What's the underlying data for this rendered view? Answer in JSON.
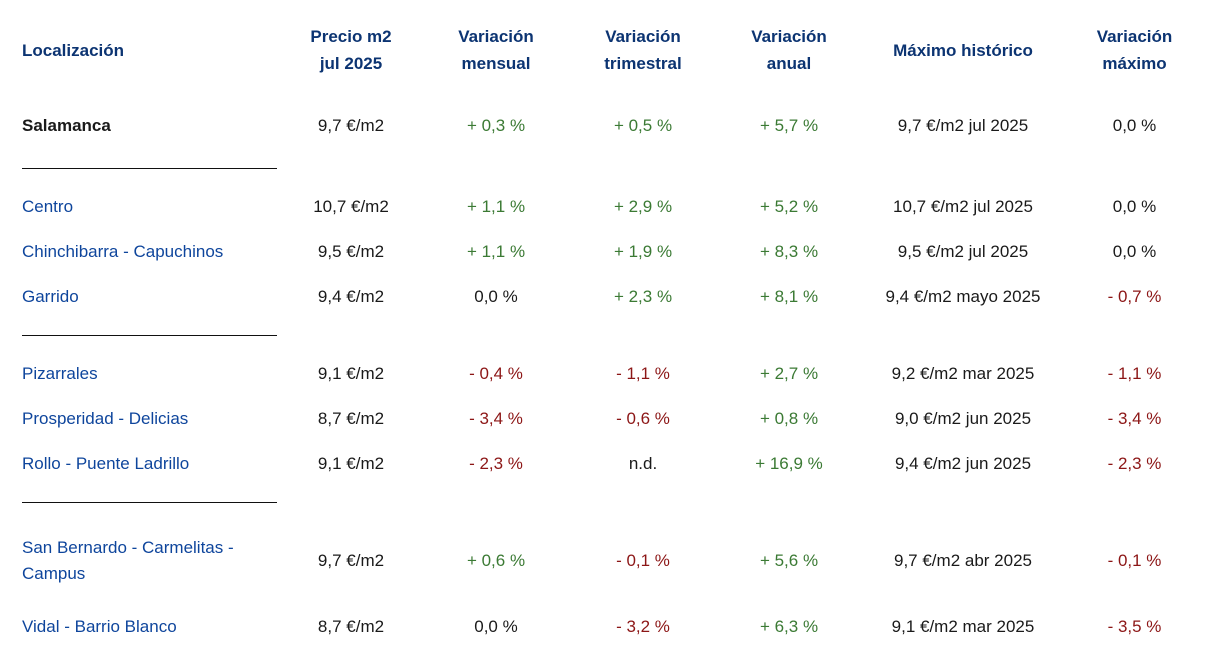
{
  "colors": {
    "header_blue": "#0c3472",
    "location_link_blue": "#0e459c",
    "positive_green": "#3b7a34",
    "negative_red": "#8c1616",
    "neutral_black": "#1a1a1a",
    "divider_line": "#111111",
    "background": "#ffffff"
  },
  "table": {
    "headers": [
      {
        "line1": "Localización",
        "line2": ""
      },
      {
        "line1": "Precio m2",
        "line2": "jul 2025"
      },
      {
        "line1": "Variación",
        "line2": "mensual"
      },
      {
        "line1": "Variación",
        "line2": "trimestral"
      },
      {
        "line1": "Variación",
        "line2": "anual"
      },
      {
        "line1": "Máximo histórico",
        "line2": ""
      },
      {
        "line1": "Variación",
        "line2": "máximo"
      }
    ],
    "rows": [
      {
        "location": "Salamanca",
        "price": "9,7 €/m2",
        "monthly": "+ 0,3 %",
        "quarterly": "+ 0,5 %",
        "annual": "+ 5,7 %",
        "historic_max": "9,7 €/m2 jul 2025",
        "max_variation": "0,0 %"
      },
      {
        "location": "Centro",
        "price": "10,7 €/m2",
        "monthly": "+ 1,1 %",
        "quarterly": "+ 2,9 %",
        "annual": "+ 5,2 %",
        "historic_max": "10,7 €/m2 jul 2025",
        "max_variation": "0,0 %"
      },
      {
        "location": "Chinchibarra - Capuchinos",
        "price": "9,5 €/m2",
        "monthly": "+ 1,1 %",
        "quarterly": "+ 1,9 %",
        "annual": "+ 8,3 %",
        "historic_max": "9,5 €/m2 jul 2025",
        "max_variation": "0,0 %"
      },
      {
        "location": "Garrido",
        "price": "9,4 €/m2",
        "monthly": "0,0 %",
        "quarterly": "+ 2,3 %",
        "annual": "+ 8,1 %",
        "historic_max": "9,4 €/m2 mayo 2025",
        "max_variation": "- 0,7 %"
      },
      {
        "location": "Pizarrales",
        "price": "9,1 €/m2",
        "monthly": "- 0,4 %",
        "quarterly": "- 1,1 %",
        "annual": "+ 2,7 %",
        "historic_max": "9,2 €/m2 mar 2025",
        "max_variation": "- 1,1 %"
      },
      {
        "location": "Prosperidad - Delicias",
        "price": "8,7 €/m2",
        "monthly": "- 3,4 %",
        "quarterly": "- 0,6 %",
        "annual": "+ 0,8 %",
        "historic_max": "9,0 €/m2 jun 2025",
        "max_variation": "- 3,4 %"
      },
      {
        "location": "Rollo - Puente Ladrillo",
        "price": "9,1 €/m2",
        "monthly": "- 2,3 %",
        "quarterly": "n.d.",
        "annual": "+ 16,9 %",
        "historic_max": "9,4 €/m2 jun 2025",
        "max_variation": "- 2,3 %"
      },
      {
        "location": "San Bernardo - Carmelitas - Campus",
        "price": "9,7 €/m2",
        "monthly": "+ 0,6 %",
        "quarterly": "- 0,1 %",
        "annual": "+ 5,6 %",
        "historic_max": "9,7 €/m2 abr 2025",
        "max_variation": "- 0,1 %"
      },
      {
        "location": "Vidal - Barrio Blanco",
        "price": "8,7 €/m2",
        "monthly": "0,0 %",
        "quarterly": "- 3,2 %",
        "annual": "+ 6,3 %",
        "historic_max": "9,1 €/m2 mar 2025",
        "max_variation": "- 3,5 %"
      }
    ]
  }
}
